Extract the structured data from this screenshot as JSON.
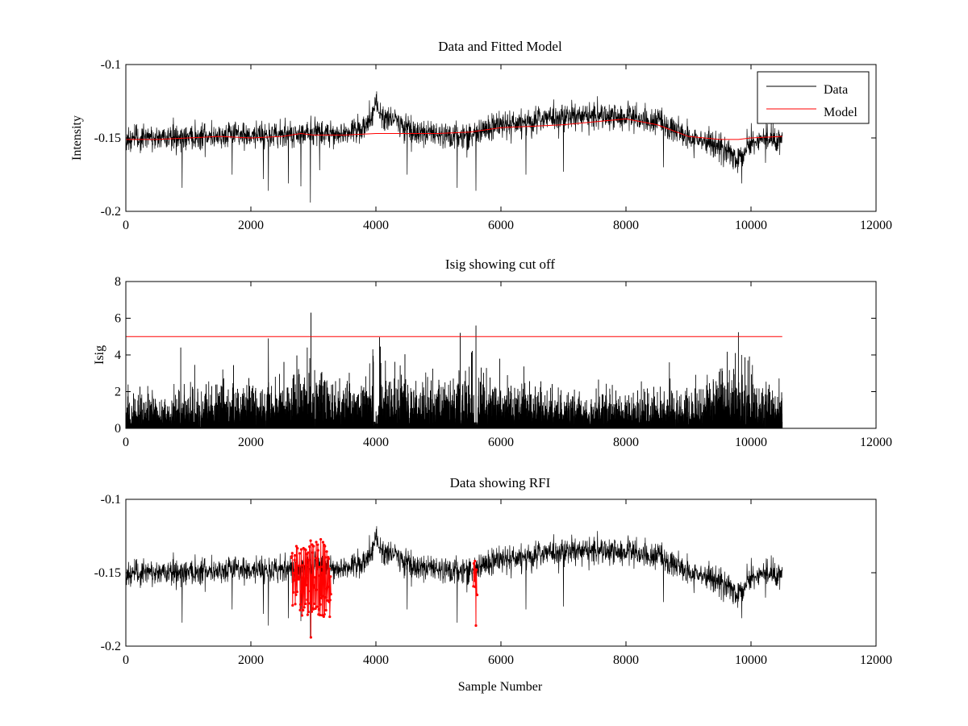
{
  "chart_data": [
    {
      "type": "line",
      "title": "Data and Fitted Model",
      "xlabel": "",
      "ylabel": "Intensity",
      "xlim": [
        0,
        12000
      ],
      "ylim": [
        -0.2,
        -0.1
      ],
      "xticks": [
        0,
        2000,
        4000,
        6000,
        8000,
        10000,
        12000
      ],
      "yticks": [
        -0.2,
        -0.15,
        -0.1
      ],
      "legend": {
        "placement": "top-right",
        "entries": [
          "Data",
          "Model"
        ]
      },
      "series": [
        {
          "name": "Data",
          "color": "#000000",
          "noise_sd": 0.0045,
          "x": [
            0,
            500,
            1000,
            1500,
            2000,
            2500,
            2900,
            3300,
            3600,
            3850,
            4000,
            4100,
            4300,
            4600,
            5000,
            5500,
            6000,
            6500,
            7000,
            7500,
            8000,
            8500,
            9000,
            9500,
            9800,
            10000,
            10500
          ],
          "values": [
            -0.151,
            -0.15,
            -0.149,
            -0.148,
            -0.148,
            -0.148,
            -0.146,
            -0.147,
            -0.146,
            -0.143,
            -0.127,
            -0.137,
            -0.137,
            -0.146,
            -0.149,
            -0.148,
            -0.141,
            -0.138,
            -0.136,
            -0.135,
            -0.135,
            -0.138,
            -0.15,
            -0.156,
            -0.165,
            -0.152,
            -0.15
          ],
          "spikes": [
            {
              "x": 900,
              "y": -0.184
            },
            {
              "x": 1700,
              "y": -0.175
            },
            {
              "x": 2200,
              "y": -0.178
            },
            {
              "x": 2280,
              "y": -0.186
            },
            {
              "x": 2600,
              "y": -0.181
            },
            {
              "x": 2800,
              "y": -0.183
            },
            {
              "x": 2950,
              "y": -0.194
            },
            {
              "x": 3100,
              "y": -0.172
            },
            {
              "x": 4500,
              "y": -0.175
            },
            {
              "x": 5300,
              "y": -0.184
            },
            {
              "x": 5600,
              "y": -0.186
            },
            {
              "x": 6400,
              "y": -0.175
            },
            {
              "x": 7000,
              "y": -0.173
            },
            {
              "x": 8600,
              "y": -0.17
            },
            {
              "x": 9850,
              "y": -0.181
            }
          ]
        },
        {
          "name": "Model",
          "color": "#ff0000",
          "x": [
            0,
            500,
            1000,
            1500,
            2000,
            2500,
            2800,
            3000,
            3500,
            4000,
            4500,
            5000,
            5500,
            6000,
            6500,
            7000,
            7500,
            8000,
            8500,
            9000,
            9500,
            9800,
            10000,
            10500
          ],
          "values": [
            -0.151,
            -0.151,
            -0.15,
            -0.149,
            -0.15,
            -0.149,
            -0.147,
            -0.148,
            -0.148,
            -0.147,
            -0.147,
            -0.147,
            -0.146,
            -0.143,
            -0.142,
            -0.141,
            -0.139,
            -0.137,
            -0.141,
            -0.149,
            -0.151,
            -0.151,
            -0.15,
            -0.149
          ]
        }
      ]
    },
    {
      "type": "line",
      "title": "Isig showing cut off",
      "xlabel": "",
      "ylabel": "Isig",
      "xlim": [
        0,
        12000
      ],
      "ylim": [
        0,
        8
      ],
      "xticks": [
        0,
        2000,
        4000,
        6000,
        8000,
        10000,
        12000
      ],
      "yticks": [
        0,
        2,
        4,
        6,
        8
      ],
      "series": [
        {
          "name": "Isig",
          "color": "#000000",
          "x": [
            0,
            1000,
            2000,
            3000,
            3800,
            4000,
            4200,
            5000,
            5500,
            6000,
            7000,
            8000,
            9000,
            9700,
            10500
          ],
          "envelope": [
            2.0,
            2.2,
            2.5,
            3.0,
            2.5,
            4.0,
            3.0,
            2.6,
            3.4,
            2.6,
            2.2,
            2.2,
            2.0,
            3.6,
            2.0
          ],
          "spikes": [
            {
              "x": 880,
              "y": 4.4
            },
            {
              "x": 1550,
              "y": 3.2
            },
            {
              "x": 2280,
              "y": 4.9
            },
            {
              "x": 2900,
              "y": 4.4
            },
            {
              "x": 2960,
              "y": 6.3
            },
            {
              "x": 3950,
              "y": 4.3
            },
            {
              "x": 5350,
              "y": 5.2
            },
            {
              "x": 5600,
              "y": 5.6
            },
            {
              "x": 9750,
              "y": 4.1
            },
            {
              "x": 9850,
              "y": 4.0
            }
          ]
        },
        {
          "name": "cut off",
          "color": "#ff0000",
          "x": [
            0,
            10500
          ],
          "values": [
            5,
            5
          ]
        }
      ]
    },
    {
      "type": "line",
      "title": "Data showing RFI",
      "xlabel": "Sample Number",
      "ylabel": "",
      "xlim": [
        0,
        12000
      ],
      "ylim": [
        -0.2,
        -0.1
      ],
      "xticks": [
        0,
        2000,
        4000,
        6000,
        8000,
        10000,
        12000
      ],
      "yticks": [
        -0.2,
        -0.15,
        -0.1
      ],
      "series": [
        {
          "name": "Data",
          "color": "#000000",
          "same_as": "Data and Fitted Model"
        },
        {
          "name": "RFI",
          "color": "#ff0000",
          "segments": [
            {
              "x_start": 2650,
              "x_end": 3280,
              "y_min": -0.18,
              "y_max": -0.127,
              "min_point": {
                "x": 2960,
                "y": -0.194
              }
            },
            {
              "x_start": 5560,
              "x_end": 5620,
              "y_min": -0.168,
              "y_max": -0.142,
              "min_point": {
                "x": 5600,
                "y": -0.186
              }
            }
          ]
        }
      ]
    }
  ]
}
